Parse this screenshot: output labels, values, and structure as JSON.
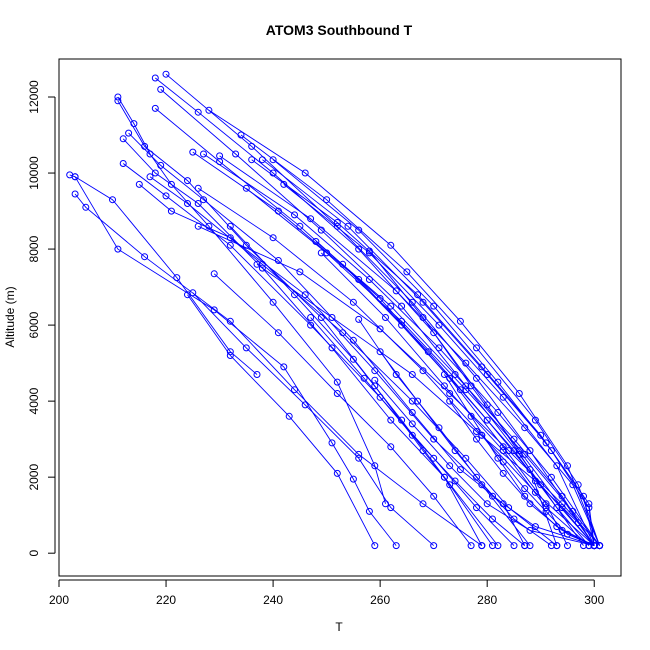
{
  "chart_data": {
    "type": "scatter",
    "title": "ATOM3 Southbound T",
    "xlabel": "T",
    "ylabel": "Altitude (m)",
    "xlim": [
      200,
      305
    ],
    "ylim": [
      -600,
      13000
    ],
    "xticks": [
      200,
      220,
      240,
      260,
      280,
      300
    ],
    "yticks": [
      0,
      2000,
      4000,
      6000,
      8000,
      10000,
      12000
    ],
    "grid": false,
    "legend": "none",
    "line_color": "#0000FF",
    "marker_color": "#0000FF",
    "marker": "open-circle",
    "series": [
      {
        "x": [
          202,
          203,
          210,
          222,
          232,
          237
        ],
        "y": [
          9950,
          9900,
          9300,
          7250,
          5300,
          4700
        ]
      },
      {
        "x": [
          203,
          211,
          229,
          242,
          251,
          255,
          258,
          263
        ],
        "y": [
          9900,
          8000,
          6400,
          4900,
          2900,
          1950,
          1100,
          200
        ]
      },
      {
        "x": [
          203,
          205,
          216,
          232,
          244,
          256,
          268,
          279
        ],
        "y": [
          9450,
          9100,
          7800,
          6100,
          4300,
          2600,
          1300,
          200
        ]
      },
      {
        "x": [
          211,
          214,
          217,
          221,
          228,
          240,
          252,
          259,
          261
        ],
        "y": [
          12000,
          11300,
          10500,
          9700,
          8600,
          6600,
          4500,
          2300,
          1300
        ]
      },
      {
        "x": [
          211,
          216,
          224,
          235,
          249,
          259,
          268,
          273,
          281
        ],
        "y": [
          11900,
          10700,
          9800,
          8100,
          6200,
          4400,
          2700,
          1800,
          200
        ]
      },
      {
        "x": [
          212,
          218,
          226,
          238,
          251,
          262,
          272,
          282
        ],
        "y": [
          10900,
          10000,
          9200,
          7500,
          5400,
          3500,
          2000,
          200
        ]
      },
      {
        "x": [
          212,
          220,
          232,
          247,
          260,
          270,
          278,
          285
        ],
        "y": [
          10250,
          9400,
          8100,
          6000,
          4100,
          2500,
          1200,
          200
        ]
      },
      {
        "x": [
          213,
          219,
          227,
          241,
          255,
          266,
          275,
          283,
          287
        ],
        "y": [
          11050,
          10200,
          9300,
          7700,
          5600,
          3700,
          2200,
          1300,
          200
        ]
      },
      {
        "x": [
          215,
          221,
          232,
          246,
          259,
          270,
          279,
          288
        ],
        "y": [
          9700,
          9000,
          8300,
          6800,
          4800,
          3000,
          1800,
          200
        ]
      },
      {
        "x": [
          217,
          224,
          238,
          253,
          266,
          276,
          284,
          293
        ],
        "y": [
          9900,
          9200,
          7600,
          5800,
          4000,
          2500,
          1200,
          200
        ]
      },
      {
        "x": [
          218,
          226,
          240,
          256,
          270,
          280,
          288,
          293
        ],
        "y": [
          12500,
          11600,
          10000,
          8000,
          5800,
          3900,
          2200,
          200
        ]
      },
      {
        "x": [
          218,
          230,
          245,
          260,
          273,
          283,
          291,
          295
        ],
        "y": [
          11700,
          10300,
          8600,
          6700,
          4600,
          2800,
          1300,
          200
        ]
      },
      {
        "x": [
          219,
          233,
          249,
          264,
          276,
          286,
          298
        ],
        "y": [
          12200,
          10500,
          8500,
          6500,
          4400,
          2600,
          200
        ]
      },
      {
        "x": [
          220,
          236,
          252,
          266,
          278,
          288,
          300
        ],
        "y": [
          12600,
          10700,
          8600,
          6600,
          4600,
          2700,
          200
        ]
      },
      {
        "x": [
          225,
          241,
          256,
          269,
          280,
          290,
          300
        ],
        "y": [
          10550,
          9000,
          7200,
          5300,
          3500,
          1800,
          200
        ]
      },
      {
        "x": [
          226,
          240,
          255,
          268,
          279,
          289,
          300
        ],
        "y": [
          9600,
          8300,
          6600,
          4800,
          3100,
          1600,
          200
        ]
      },
      {
        "x": [
          226,
          245,
          260,
          273,
          284,
          294,
          301
        ],
        "y": [
          8600,
          7400,
          5900,
          4200,
          2700,
          1300,
          200
        ]
      },
      {
        "x": [
          227,
          244,
          258,
          271,
          282,
          292,
          301
        ],
        "y": [
          10500,
          8900,
          7200,
          5400,
          3700,
          2000,
          200
        ]
      },
      {
        "x": [
          228,
          246,
          262,
          275,
          286,
          295,
          301
        ],
        "y": [
          11650,
          10000,
          8100,
          6100,
          4200,
          2300,
          200
        ]
      },
      {
        "x": [
          230,
          247,
          263,
          276,
          287,
          296,
          301
        ],
        "y": [
          10450,
          8800,
          6900,
          5000,
          3300,
          1800,
          200
        ]
      },
      {
        "x": [
          234,
          250,
          265,
          278,
          289,
          297,
          301
        ],
        "y": [
          11000,
          9300,
          7400,
          5400,
          3500,
          1800,
          200
        ]
      },
      {
        "x": [
          236,
          252,
          267,
          279,
          290,
          298,
          300
        ],
        "y": [
          10350,
          8700,
          6800,
          4900,
          3100,
          1500,
          200
        ]
      },
      {
        "x": [
          238,
          254,
          268,
          280,
          291,
          299,
          300
        ],
        "y": [
          10350,
          8600,
          6600,
          4700,
          2900,
          1300,
          200
        ]
      },
      {
        "x": [
          240,
          256,
          270,
          282,
          292,
          299,
          300
        ],
        "y": [
          10350,
          8500,
          6500,
          4500,
          2700,
          1200,
          200
        ]
      },
      {
        "x": [
          242,
          258,
          271,
          283,
          293,
          300
        ],
        "y": [
          9700,
          7900,
          6000,
          4100,
          2300,
          200
        ]
      },
      {
        "x": [
          235,
          250,
          264,
          276,
          287,
          296,
          301
        ],
        "y": [
          9600,
          7900,
          6100,
          4300,
          2600,
          1100,
          200
        ]
      },
      {
        "x": [
          237,
          251,
          266,
          278,
          289,
          297,
          300
        ],
        "y": [
          7600,
          6200,
          4700,
          3200,
          1900,
          800,
          200
        ]
      },
      {
        "x": [
          248,
          262,
          274,
          285,
          294,
          300
        ],
        "y": [
          8200,
          6500,
          4700,
          3000,
          1500,
          200
        ]
      },
      {
        "x": [
          249,
          261,
          272,
          283,
          291,
          299
        ],
        "y": [
          7900,
          6200,
          4400,
          2700,
          1200,
          200
        ]
      },
      {
        "x": [
          253,
          264,
          275,
          285,
          293,
          299
        ],
        "y": [
          7600,
          6000,
          4300,
          2700,
          1200,
          200
        ]
      },
      {
        "x": [
          258,
          268,
          277,
          286,
          294,
          300
        ],
        "y": [
          7950,
          6200,
          4400,
          2700,
          1200,
          200
        ]
      },
      {
        "x": [
          224,
          232,
          243,
          252,
          259
        ],
        "y": [
          6800,
          5200,
          3600,
          2100,
          200
        ]
      },
      {
        "x": [
          225,
          235,
          246,
          256,
          262,
          270
        ],
        "y": [
          6850,
          5400,
          3900,
          2500,
          1200,
          200
        ]
      },
      {
        "x": [
          229,
          241,
          252,
          262,
          270,
          277
        ],
        "y": [
          7350,
          5800,
          4200,
          2800,
          1500,
          200
        ]
      },
      {
        "x": [
          232,
          244,
          255,
          264,
          272,
          279
        ],
        "y": [
          8600,
          6800,
          5100,
          3500,
          2000,
          200
        ]
      },
      {
        "x": [
          247,
          257,
          266,
          274,
          281,
          287
        ],
        "y": [
          6200,
          4600,
          3100,
          1900,
          900,
          200
        ]
      },
      {
        "x": [
          256,
          263,
          271,
          278,
          285,
          292
        ],
        "y": [
          6150,
          4700,
          3300,
          2000,
          900,
          200
        ]
      },
      {
        "x": [
          259,
          266,
          273,
          280,
          288,
          300
        ],
        "y": [
          4550,
          3400,
          2300,
          1300,
          600,
          200
        ]
      },
      {
        "x": [
          260,
          267,
          274,
          281,
          289,
          300
        ],
        "y": [
          5300,
          4000,
          2700,
          1500,
          700,
          200
        ]
      },
      {
        "x": [
          272,
          277,
          282,
          287,
          293,
          300
        ],
        "y": [
          4700,
          3600,
          2500,
          1500,
          700,
          200
        ]
      },
      {
        "x": [
          273,
          278,
          283,
          288,
          294,
          300
        ],
        "y": [
          4000,
          3000,
          2100,
          1300,
          600,
          200
        ]
      },
      {
        "x": [
          279,
          283,
          287,
          291,
          295,
          300
        ],
        "y": [
          3100,
          2400,
          1700,
          1100,
          500,
          200
        ]
      }
    ]
  }
}
